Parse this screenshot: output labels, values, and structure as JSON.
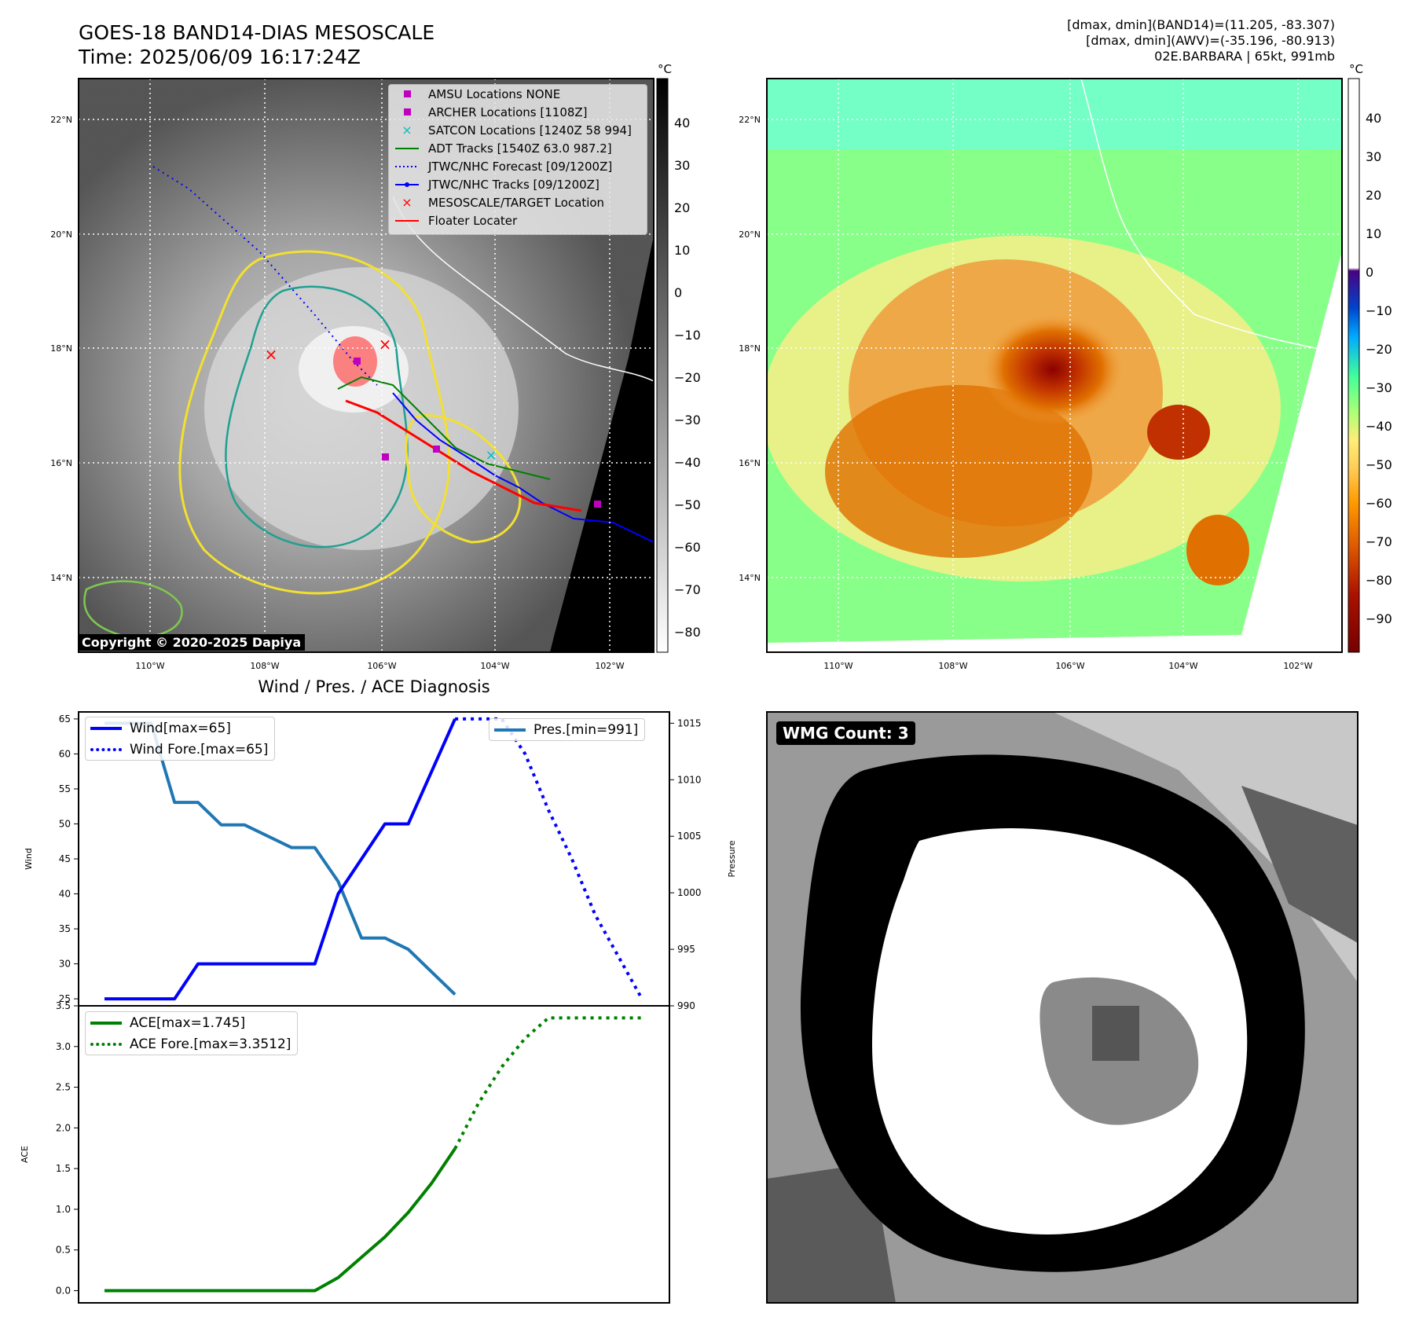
{
  "header": {
    "title": "GOES-18 BAND14-DIAS MESOSCALE",
    "time": "Time: 2025/06/09 16:17:24Z",
    "stats_line1": "[dmax, dmin](BAND14)=(11.205, -83.307)",
    "stats_line2": "[dmax, dmin](AWV)=(-35.196, -80.913)",
    "stats_line3": "02E.BARBARA | 65kt, 991mb"
  },
  "map_left": {
    "lon_labels": [
      "110°W",
      "108°W",
      "106°W",
      "104°W",
      "102°W"
    ],
    "lat_labels": [
      "22°N",
      "20°N",
      "18°N",
      "16°N",
      "14°N"
    ],
    "colorbar_unit": "°C",
    "colorbar_ticks": [
      "40",
      "30",
      "20",
      "10",
      "0",
      "−10",
      "−20",
      "−30",
      "−40",
      "−50",
      "−60",
      "−70",
      "−80"
    ],
    "copyright": "Copyright © 2020-2025 Dapiya",
    "legend": [
      {
        "label": "AMSU Locations NONE",
        "marker": "square",
        "color": "#c000c0"
      },
      {
        "label": "ARCHER Locations [1108Z]",
        "marker": "square",
        "color": "#c000c0"
      },
      {
        "label": "SATCON Locations [1240Z 58 994]",
        "marker": "x",
        "color": "#00c0c0"
      },
      {
        "label": "ADT Tracks [1540Z 63.0 987.2]",
        "marker": "line",
        "color": "#008000"
      },
      {
        "label": "JTWC/NHC Forecast [09/1200Z]",
        "marker": "dotted",
        "color": "#0000ff"
      },
      {
        "label": "JTWC/NHC Tracks [09/1200Z]",
        "marker": "line-dot",
        "color": "#0000ff"
      },
      {
        "label": "MESOSCALE/TARGET Location",
        "marker": "x",
        "color": "#ff0000"
      },
      {
        "label": "Floater Locater",
        "marker": "line",
        "color": "#ff0000"
      }
    ]
  },
  "map_right": {
    "lon_labels": [
      "110°W",
      "108°W",
      "106°W",
      "104°W",
      "102°W"
    ],
    "lat_labels": [
      "22°N",
      "20°N",
      "18°N",
      "16°N",
      "14°N"
    ],
    "colorbar_unit": "°C",
    "colorbar_ticks": [
      "40",
      "30",
      "20",
      "10",
      "0",
      "−10",
      "−20",
      "−30",
      "−40",
      "−50",
      "−60",
      "−70",
      "−80",
      "−90"
    ]
  },
  "diagnosis": {
    "title": "Wind / Pres. / ACE Diagnosis",
    "wind_ylabel": "Wind",
    "pres_ylabel": "Pressure",
    "ace_ylabel": "ACE",
    "wind_ticks": [
      "25",
      "30",
      "35",
      "40",
      "45",
      "50",
      "55",
      "60",
      "65"
    ],
    "pres_ticks": [
      "990",
      "995",
      "1000",
      "1005",
      "1010",
      "1015"
    ],
    "ace_ticks": [
      "0.0",
      "0.5",
      "1.0",
      "1.5",
      "2.0",
      "2.5",
      "3.0",
      "3.5"
    ],
    "legend_wind": "Wind[max=65]",
    "legend_wind_fore": "Wind Fore.[max=65]",
    "legend_pres": "Pres.[min=991]",
    "legend_ace": "ACE[max=1.745]",
    "legend_ace_fore": "ACE Fore.[max=3.3512]"
  },
  "wmg": {
    "label": "WMG Count: 3"
  },
  "colors": {
    "wind": "#0000ff",
    "pressure": "#1f77b4",
    "ace": "#008000"
  },
  "chart_data": [
    {
      "type": "line",
      "title": "Wind / Pres. / ACE Diagnosis",
      "ylabel": "Wind",
      "y2label": "Pressure",
      "ylim": [
        24,
        66
      ],
      "y2lim": [
        990,
        1016
      ],
      "x": [
        0,
        1,
        2,
        3,
        4,
        5,
        6,
        7,
        8,
        9,
        10,
        11,
        12,
        13,
        14,
        15,
        16,
        17,
        18,
        19,
        20,
        21,
        22,
        23
      ],
      "series": [
        {
          "name": "Wind[max=65]",
          "axis": "left",
          "style": "solid",
          "x": [
            0,
            3,
            4,
            9,
            10,
            12,
            13,
            15
          ],
          "values": [
            25,
            25,
            30,
            30,
            40,
            50,
            50,
            65
          ]
        },
        {
          "name": "Wind Fore.[max=65]",
          "axis": "left",
          "style": "dotted",
          "x": [
            15,
            17,
            18,
            19,
            20,
            21,
            22,
            23
          ],
          "values": [
            65,
            65,
            60,
            52,
            45,
            37,
            31,
            25
          ]
        },
        {
          "name": "Pres.[min=991]",
          "axis": "right",
          "style": "solid",
          "x": [
            0,
            2,
            3,
            4,
            5,
            6,
            8,
            9,
            10,
            11,
            12,
            13,
            14,
            15
          ],
          "values": [
            1015,
            1015,
            1008,
            1008,
            1006,
            1006,
            1004,
            1004,
            1001,
            996,
            996,
            995,
            993,
            991
          ]
        }
      ]
    },
    {
      "type": "line",
      "ylabel": "ACE",
      "ylim": [
        -0.15,
        3.5
      ],
      "x": [
        0,
        1,
        2,
        3,
        4,
        5,
        6,
        7,
        8,
        9,
        10,
        11,
        12,
        13,
        14,
        15,
        16,
        17,
        18,
        19,
        20,
        21,
        22,
        23
      ],
      "series": [
        {
          "name": "ACE[max=1.745]",
          "style": "solid",
          "x": [
            0,
            1,
            2,
            3,
            4,
            5,
            6,
            7,
            8,
            9,
            10,
            11,
            12,
            13,
            14,
            15
          ],
          "values": [
            0,
            0,
            0,
            0,
            0,
            0,
            0,
            0,
            0,
            0,
            0.16,
            0.41,
            0.66,
            0.96,
            1.32,
            1.745
          ]
        },
        {
          "name": "ACE Fore.[max=3.3512]",
          "style": "dotted",
          "x": [
            15,
            16,
            17,
            18,
            19,
            20,
            21,
            22,
            23
          ],
          "values": [
            1.745,
            2.3,
            2.75,
            3.1,
            3.3512,
            3.3512,
            3.3512,
            3.3512,
            3.3512
          ]
        }
      ]
    }
  ]
}
